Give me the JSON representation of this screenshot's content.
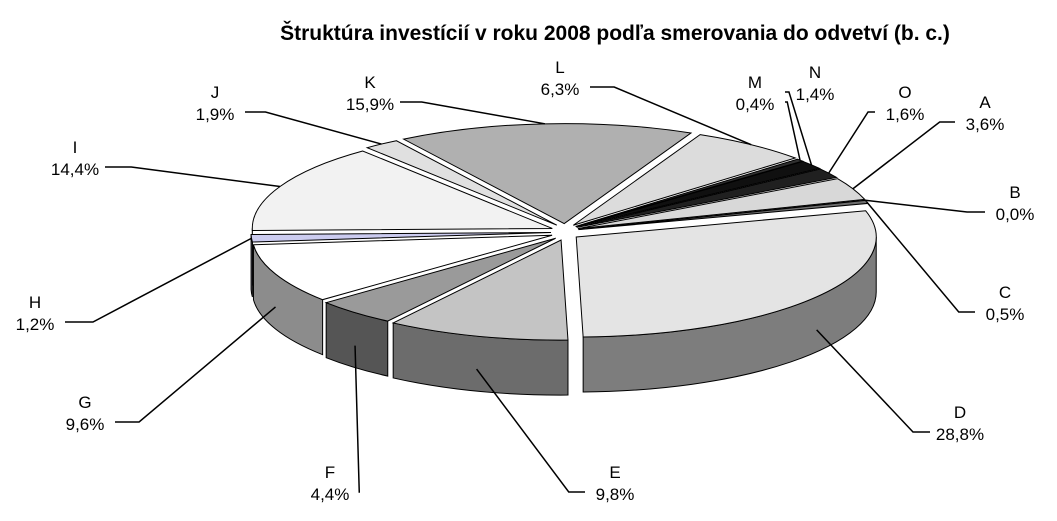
{
  "chart_data": {
    "type": "pie",
    "title": "Štruktúra investícií v roku 2008 podľa smerovania do odvetví (b. c.)",
    "categories": [
      "A",
      "B",
      "C",
      "D",
      "E",
      "F",
      "G",
      "H",
      "I",
      "J",
      "K",
      "L",
      "M",
      "N",
      "O"
    ],
    "values": [
      3.6,
      0.0,
      0.5,
      28.8,
      9.8,
      4.4,
      9.6,
      1.2,
      14.4,
      1.9,
      15.9,
      6.3,
      0.4,
      1.4,
      1.6
    ],
    "value_labels": [
      "3,6%",
      "0,0%",
      "0,5%",
      "28,8%",
      "9,8%",
      "4,4%",
      "9,6%",
      "1,2%",
      "14,4%",
      "1,9%",
      "15,9%",
      "6,3%",
      "0,4%",
      "1,4%",
      "1,6%"
    ],
    "colors": [
      "#d8d8d8",
      "#8a8a8a",
      "#6e6e6e",
      "#e4e4e4",
      "#c4c4c4",
      "#9a9a9a",
      "#ffffff",
      "#ccccf0",
      "#f2f2f2",
      "#e0e0e0",
      "#b0b0b0",
      "#dcdcdc",
      "#303030",
      "#101010",
      "#202020"
    ]
  }
}
